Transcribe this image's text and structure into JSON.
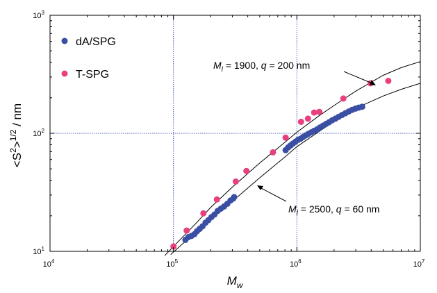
{
  "chart_data": {
    "type": "scatter",
    "xscale": "log",
    "yscale": "log",
    "xlim": [
      10000,
      10000000
    ],
    "ylim": [
      10,
      1000
    ],
    "xlabel": "M_w",
    "ylabel": "<S^2>^1/2 / nm",
    "grid": true,
    "legend_position": "top-left",
    "x_ticks": [
      {
        "value": 10000,
        "base": "10",
        "exp": "4"
      },
      {
        "value": 100000,
        "base": "10",
        "exp": "5"
      },
      {
        "value": 1000000,
        "base": "10",
        "exp": "6"
      },
      {
        "value": 10000000,
        "base": "10",
        "exp": "7"
      }
    ],
    "y_ticks": [
      {
        "value": 10,
        "base": "10",
        "exp": "1"
      },
      {
        "value": 100,
        "base": "10",
        "exp": "2"
      },
      {
        "value": 1000,
        "base": "10",
        "exp": "3"
      }
    ],
    "axis_titles": {
      "x_main": "M",
      "x_sub": "w",
      "y_lead": "<S",
      "y_sup1": "2",
      "y_mid": ">",
      "y_sup2": "1/2",
      "y_tail": " / nm"
    },
    "series": [
      {
        "name": "dA/SPG",
        "color": "#3a4fa3",
        "marker": "circle",
        "points": [
          [
            125000,
            12.5
          ],
          [
            132000,
            13.2
          ],
          [
            140000,
            13.5
          ],
          [
            148000,
            14.0
          ],
          [
            155000,
            14.8
          ],
          [
            163000,
            15.5
          ],
          [
            172000,
            16.3
          ],
          [
            182000,
            17.5
          ],
          [
            192000,
            18.4
          ],
          [
            203000,
            19.5
          ],
          [
            215000,
            20.5
          ],
          [
            228000,
            22.0
          ],
          [
            242000,
            23.0
          ],
          [
            257000,
            24.0
          ],
          [
            273000,
            25.3
          ],
          [
            290000,
            27.0
          ],
          [
            305000,
            28.0
          ],
          [
            310000,
            28.8
          ],
          [
            810000,
            72
          ],
          [
            850000,
            76
          ],
          [
            890000,
            79
          ],
          [
            930000,
            82
          ],
          [
            975000,
            85
          ],
          [
            1020000,
            88
          ],
          [
            1070000,
            90
          ],
          [
            1120000,
            93
          ],
          [
            1180000,
            96
          ],
          [
            1240000,
            99
          ],
          [
            1310000,
            102
          ],
          [
            1380000,
            105
          ],
          [
            1460000,
            108
          ],
          [
            1540000,
            112
          ],
          [
            1630000,
            116
          ],
          [
            1720000,
            120
          ],
          [
            1820000,
            124
          ],
          [
            1930000,
            129
          ],
          [
            2050000,
            133
          ],
          [
            2180000,
            138
          ],
          [
            2320000,
            143
          ],
          [
            2470000,
            148
          ],
          [
            2630000,
            153
          ],
          [
            2800000,
            158
          ],
          [
            2980000,
            162
          ],
          [
            3170000,
            165
          ],
          [
            3380000,
            168
          ]
        ]
      },
      {
        "name": "T-SPG",
        "color": "#e8407f",
        "marker": "circle",
        "points": [
          [
            100000,
            11
          ],
          [
            128000,
            15
          ],
          [
            175000,
            21
          ],
          [
            225000,
            27.5
          ],
          [
            320000,
            39
          ],
          [
            390000,
            48
          ],
          [
            640000,
            69
          ],
          [
            810000,
            92
          ],
          [
            1080000,
            125
          ],
          [
            1230000,
            133
          ],
          [
            1380000,
            150
          ],
          [
            1520000,
            152
          ],
          [
            2380000,
            197
          ],
          [
            3950000,
            265
          ],
          [
            5500000,
            278
          ]
        ]
      }
    ],
    "curves": [
      {
        "name": "upper-fit",
        "color": "#000000",
        "points": [
          [
            85000,
            9.2
          ],
          [
            100000,
            11.0
          ],
          [
            150000,
            17.0
          ],
          [
            200000,
            23.5
          ],
          [
            300000,
            35
          ],
          [
            500000,
            56
          ],
          [
            800000,
            84
          ],
          [
            1000000,
            102
          ],
          [
            1500000,
            140
          ],
          [
            2000000,
            172
          ],
          [
            3000000,
            228
          ],
          [
            5000000,
            310
          ],
          [
            7000000,
            360
          ],
          [
            10000000,
            405
          ]
        ]
      },
      {
        "name": "lower-fit",
        "color": "#000000",
        "points": [
          [
            95000,
            9.4
          ],
          [
            120000,
            11.7
          ],
          [
            150000,
            14.2
          ],
          [
            200000,
            18.5
          ],
          [
            300000,
            26.5
          ],
          [
            500000,
            42
          ],
          [
            800000,
            63
          ],
          [
            1000000,
            77
          ],
          [
            1500000,
            103
          ],
          [
            2000000,
            126
          ],
          [
            3000000,
            163
          ],
          [
            5000000,
            207
          ],
          [
            7000000,
            236
          ],
          [
            10000000,
            265
          ]
        ]
      }
    ],
    "annotations": [
      {
        "id": "upper",
        "l_main": "M",
        "l_sub": "l",
        "text": " = 1900, ",
        "q_main": "q",
        "q_text": " = 200 nm"
      },
      {
        "id": "lower",
        "l_main": "M",
        "l_sub": "l",
        "text": " = 2500, ",
        "q_main": "q",
        "q_text": " = 60 nm"
      }
    ]
  }
}
